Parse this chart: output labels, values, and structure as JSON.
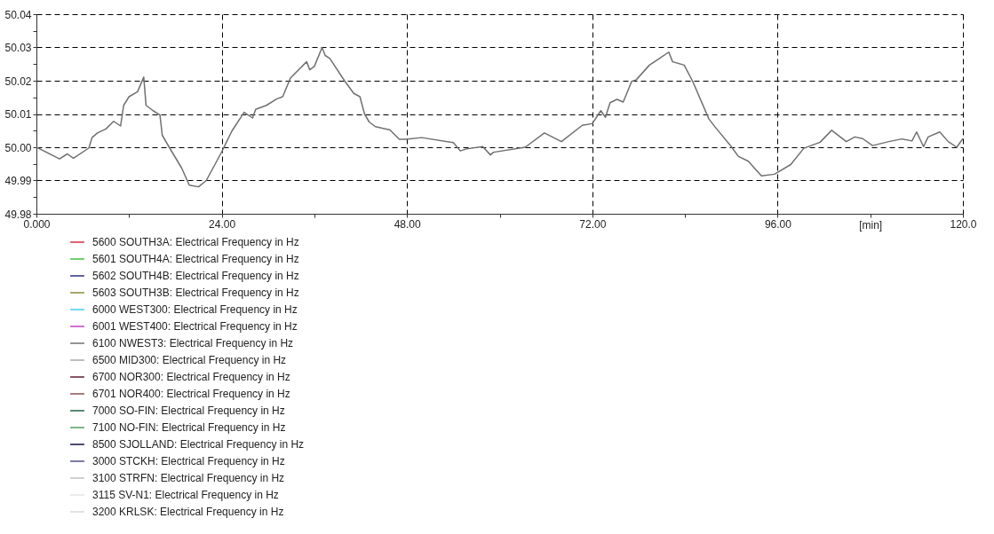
{
  "chart_data": {
    "type": "line",
    "xlabel": "[min]",
    "x": [
      0,
      3.0,
      4.0,
      4.8,
      6.8,
      7.2,
      7.9,
      9.0,
      10.0,
      10.9,
      11.3,
      12.0,
      13.1,
      13.9,
      14.2,
      15.1,
      16.0,
      16.3,
      17.2,
      18.8,
      19.8,
      21.0,
      22.0,
      24.0,
      25.3,
      26.9,
      28.0,
      28.4,
      29.8,
      31.1,
      31.9,
      32.9,
      35.0,
      35.4,
      36.0,
      37.0,
      37.4,
      38.0,
      39.9,
      41.1,
      41.9,
      42.5,
      43.1,
      43.9,
      45.8,
      47.0,
      47.9,
      49.9,
      54.0,
      54.9,
      55.7,
      57.8,
      58.8,
      59.2,
      63.3,
      65.8,
      68.0,
      70.7,
      72.0,
      73.1,
      73.7,
      74.3,
      75.2,
      76.0,
      77.1,
      77.7,
      79.4,
      80.7,
      81.9,
      82.4,
      83.9,
      85.0,
      87.1,
      87.9,
      90.0,
      90.9,
      92.2,
      93.9,
      95.6,
      97.7,
      99.4,
      101.5,
      103.0,
      104.9,
      106.0,
      107.0,
      108.3,
      110.4,
      112.1,
      113.4,
      114.0,
      114.9,
      115.5,
      117.0,
      118.1,
      119.2,
      120.0
    ],
    "series": [
      {
        "name": "5600 SOUTH3A: Electrical Frequency in Hz",
        "color": "#d03040",
        "values": [
          null,
          null,
          null,
          null,
          null,
          null,
          null,
          null,
          null,
          null,
          null,
          null,
          null,
          null,
          null,
          null,
          null,
          null,
          null,
          null,
          null,
          null,
          null,
          null,
          null,
          null,
          null,
          null,
          null,
          null,
          null,
          null,
          null,
          null,
          null,
          null,
          null,
          null,
          null,
          null,
          null,
          null,
          null,
          null,
          null,
          null,
          null,
          null,
          null,
          null,
          null,
          null,
          null,
          null,
          null,
          null,
          null,
          null,
          null,
          null,
          null,
          null,
          null,
          null,
          null,
          null,
          null,
          null,
          null,
          null,
          null,
          null,
          null,
          null,
          null,
          null,
          null,
          null,
          null,
          null,
          null,
          null,
          null,
          null,
          null,
          null,
          null,
          null,
          null,
          null,
          null,
          null,
          null,
          null,
          null,
          null,
          null
        ]
      },
      {
        "name": "5601 SOUTH4A: Electrical Frequency in Hz",
        "color": "#40c040",
        "values": [
          null,
          null,
          null,
          null,
          null,
          null,
          null,
          null,
          null,
          null,
          null,
          null,
          null,
          null,
          null,
          null,
          null,
          null,
          null,
          null,
          null,
          null,
          null,
          null,
          null,
          null,
          null,
          null,
          null,
          null,
          null,
          null,
          null,
          null,
          null,
          null,
          null,
          null,
          null,
          null,
          null,
          null,
          null,
          null,
          null,
          null,
          null,
          null,
          null,
          null,
          null,
          null,
          null,
          null,
          null,
          null,
          null,
          null,
          null,
          null,
          null,
          null,
          null,
          null,
          null,
          null,
          null,
          null,
          null,
          null,
          null,
          null,
          null,
          null,
          null,
          null,
          null,
          null,
          null,
          null,
          null,
          null,
          null,
          null,
          null,
          null,
          null,
          null,
          null,
          null,
          null,
          null,
          null,
          null,
          null,
          null,
          null
        ]
      },
      {
        "name": "5602 SOUTH4B: Electrical Frequency in Hz",
        "color": "#303080",
        "values": [
          null,
          null,
          null,
          null,
          null,
          null,
          null,
          null,
          null,
          null,
          null,
          null,
          null,
          null,
          null,
          null,
          null,
          null,
          null,
          null,
          null,
          null,
          null,
          null,
          null,
          null,
          null,
          null,
          null,
          null,
          null,
          null,
          null,
          null,
          null,
          null,
          null,
          null,
          null,
          null,
          null,
          null,
          null,
          null,
          null,
          null,
          null,
          null,
          null,
          null,
          null,
          null,
          null,
          null,
          null,
          null,
          null,
          null,
          null,
          null,
          null,
          null,
          null,
          null,
          null,
          null,
          null,
          null,
          null,
          null,
          null,
          null,
          null,
          null,
          null,
          null,
          null,
          null,
          null,
          null,
          null,
          null,
          null,
          null,
          null,
          null,
          null,
          null,
          null,
          null,
          null,
          null,
          null,
          null,
          null,
          null,
          null
        ]
      },
      {
        "name": "5603 SOUTH3B: Electrical Frequency in Hz",
        "color": "#8a8a40",
        "values": [
          null,
          null,
          null,
          null,
          null,
          null,
          null,
          null,
          null,
          null,
          null,
          null,
          null,
          null,
          null,
          null,
          null,
          null,
          null,
          null,
          null,
          null,
          null,
          null,
          null,
          null,
          null,
          null,
          null,
          null,
          null,
          null,
          null,
          null,
          null,
          null,
          null,
          null,
          null,
          null,
          null,
          null,
          null,
          null,
          null,
          null,
          null,
          null,
          null,
          null,
          null,
          null,
          null,
          null,
          null,
          null,
          null,
          null,
          null,
          null,
          null,
          null,
          null,
          null,
          null,
          null,
          null,
          null,
          null,
          null,
          null,
          null,
          null,
          null,
          null,
          null,
          null,
          null,
          null,
          null,
          null,
          null,
          null,
          null,
          null,
          null,
          null,
          null,
          null,
          null,
          null,
          null,
          null,
          null,
          null,
          null,
          null
        ]
      },
      {
        "name": "6000 WEST300: Electrical Frequency in Hz",
        "color": "#40d0e0",
        "values": [
          null,
          null,
          null,
          null,
          null,
          null,
          null,
          null,
          null,
          null,
          null,
          null,
          null,
          null,
          null,
          null,
          null,
          null,
          null,
          null,
          null,
          null,
          null,
          null,
          null,
          null,
          null,
          null,
          null,
          null,
          null,
          null,
          null,
          null,
          null,
          null,
          null,
          null,
          null,
          null,
          null,
          null,
          null,
          null,
          null,
          null,
          null,
          null,
          null,
          null,
          null,
          null,
          null,
          null,
          null,
          null,
          null,
          null,
          null,
          null,
          null,
          null,
          null,
          null,
          null,
          null,
          null,
          null,
          null,
          null,
          null,
          null,
          null,
          null,
          null,
          null,
          null,
          null,
          null,
          null,
          null,
          null,
          null,
          null,
          null,
          null,
          null,
          null,
          null,
          null,
          null,
          null,
          null,
          null,
          null,
          null,
          null
        ]
      },
      {
        "name": "6001 WEST400: Electrical Frequency in Hz",
        "color": "#c040c0",
        "values": [
          null,
          null,
          null,
          null,
          null,
          null,
          null,
          null,
          null,
          null,
          null,
          null,
          null,
          null,
          null,
          null,
          null,
          null,
          null,
          null,
          null,
          null,
          null,
          null,
          null,
          null,
          null,
          null,
          null,
          null,
          null,
          null,
          null,
          null,
          null,
          null,
          null,
          null,
          null,
          null,
          null,
          null,
          null,
          null,
          null,
          null,
          null,
          null,
          null,
          null,
          null,
          null,
          null,
          null,
          null,
          null,
          null,
          null,
          null,
          null,
          null,
          null,
          null,
          null,
          null,
          null,
          null,
          null,
          null,
          null,
          null,
          null,
          null,
          null,
          null,
          null,
          null,
          null,
          null,
          null,
          null,
          null,
          null,
          null,
          null,
          null,
          null,
          null,
          null,
          null,
          null,
          null,
          null,
          null,
          null,
          null,
          null
        ]
      },
      {
        "name": "6100 NWEST3: Electrical Frequency in Hz",
        "color": "#707070",
        "values": [
          50.0,
          49.9965,
          49.998,
          49.9967,
          49.9998,
          50.0029,
          50.0043,
          50.0055,
          50.0078,
          50.0064,
          50.0126,
          50.0152,
          50.0167,
          50.0211,
          50.0126,
          50.011,
          50.0097,
          50.0036,
          50.0,
          49.9938,
          49.9886,
          49.9881,
          49.99,
          49.9986,
          50.0048,
          50.0105,
          50.0088,
          50.0114,
          50.0126,
          50.0145,
          50.0152,
          50.0208,
          50.0257,
          50.0233,
          50.0243,
          50.03,
          50.0276,
          50.0267,
          50.02,
          50.0162,
          50.0152,
          50.01,
          50.0076,
          50.0062,
          50.0052,
          50.0024,
          50.0024,
          50.0029,
          50.0014,
          49.9989,
          49.9995,
          50.0002,
          49.9977,
          49.9985,
          50.0,
          50.0043,
          50.0017,
          50.0066,
          50.0071,
          50.011,
          50.009,
          50.0134,
          50.0144,
          50.0136,
          50.0198,
          50.0203,
          50.0247,
          50.0267,
          50.0286,
          50.0257,
          50.0247,
          50.0198,
          50.0085,
          50.0061,
          50.0002,
          49.9973,
          49.9958,
          49.9914,
          49.9919,
          49.9948,
          49.9997,
          50.0015,
          50.0051,
          50.0017,
          50.0031,
          50.0026,
          50.0005,
          50.0017,
          50.0025,
          50.0019,
          50.0046,
          50.0002,
          50.0031,
          50.0046,
          50.0017,
          50.0,
          50.0026
        ]
      },
      {
        "name": "6500 MID300: Electrical Frequency in Hz",
        "color": "#a8a8a8",
        "values": [
          null,
          null,
          null,
          null,
          null,
          null,
          null,
          null,
          null,
          null,
          null,
          null,
          null,
          null,
          null,
          null,
          null,
          null,
          null,
          null,
          null,
          null,
          null,
          null,
          null,
          null,
          null,
          null,
          null,
          null,
          null,
          null,
          null,
          null,
          null,
          null,
          null,
          null,
          null,
          null,
          null,
          null,
          null,
          null,
          null,
          null,
          null,
          null,
          null,
          null,
          null,
          null,
          null,
          null,
          null,
          null,
          null,
          null,
          null,
          null,
          null,
          null,
          null,
          null,
          null,
          null,
          null,
          null,
          null,
          null,
          null,
          null,
          null,
          null,
          null,
          null,
          null,
          null,
          null,
          null,
          null,
          null,
          null,
          null,
          null,
          null,
          null,
          null,
          null,
          null,
          null,
          null,
          null,
          null,
          null,
          null,
          null
        ]
      },
      {
        "name": "6700 NOR300: Electrical Frequency in Hz",
        "color": "#602030",
        "values": [
          null,
          null,
          null,
          null,
          null,
          null,
          null,
          null,
          null,
          null,
          null,
          null,
          null,
          null,
          null,
          null,
          null,
          null,
          null,
          null,
          null,
          null,
          null,
          null,
          null,
          null,
          null,
          null,
          null,
          null,
          null,
          null,
          null,
          null,
          null,
          null,
          null,
          null,
          null,
          null,
          null,
          null,
          null,
          null,
          null,
          null,
          null,
          null,
          null,
          null,
          null,
          null,
          null,
          null,
          null,
          null,
          null,
          null,
          null,
          null,
          null,
          null,
          null,
          null,
          null,
          null,
          null,
          null,
          null,
          null,
          null,
          null,
          null,
          null,
          null,
          null,
          null,
          null,
          null,
          null,
          null,
          null,
          null,
          null,
          null,
          null,
          null,
          null,
          null,
          null,
          null,
          null,
          null,
          null,
          null,
          null,
          null
        ]
      },
      {
        "name": "6701 NOR400: Electrical Frequency in Hz",
        "color": "#8a5050",
        "values": [
          null,
          null,
          null,
          null,
          null,
          null,
          null,
          null,
          null,
          null,
          null,
          null,
          null,
          null,
          null,
          null,
          null,
          null,
          null,
          null,
          null,
          null,
          null,
          null,
          null,
          null,
          null,
          null,
          null,
          null,
          null,
          null,
          null,
          null,
          null,
          null,
          null,
          null,
          null,
          null,
          null,
          null,
          null,
          null,
          null,
          null,
          null,
          null,
          null,
          null,
          null,
          null,
          null,
          null,
          null,
          null,
          null,
          null,
          null,
          null,
          null,
          null,
          null,
          null,
          null,
          null,
          null,
          null,
          null,
          null,
          null,
          null,
          null,
          null,
          null,
          null,
          null,
          null,
          null,
          null,
          null,
          null,
          null,
          null,
          null,
          null,
          null,
          null,
          null,
          null,
          null,
          null,
          null,
          null,
          null,
          null,
          null
        ]
      },
      {
        "name": "7000 SO-FIN: Electrical Frequency in Hz",
        "color": "#206040",
        "values": [
          null,
          null,
          null,
          null,
          null,
          null,
          null,
          null,
          null,
          null,
          null,
          null,
          null,
          null,
          null,
          null,
          null,
          null,
          null,
          null,
          null,
          null,
          null,
          null,
          null,
          null,
          null,
          null,
          null,
          null,
          null,
          null,
          null,
          null,
          null,
          null,
          null,
          null,
          null,
          null,
          null,
          null,
          null,
          null,
          null,
          null,
          null,
          null,
          null,
          null,
          null,
          null,
          null,
          null,
          null,
          null,
          null,
          null,
          null,
          null,
          null,
          null,
          null,
          null,
          null,
          null,
          null,
          null,
          null,
          null,
          null,
          null,
          null,
          null,
          null,
          null,
          null,
          null,
          null,
          null,
          null,
          null,
          null,
          null,
          null,
          null,
          null,
          null,
          null,
          null,
          null,
          null,
          null,
          null,
          null,
          null,
          null
        ]
      },
      {
        "name": "7100 NO-FIN: Electrical Frequency in Hz",
        "color": "#50a060",
        "values": [
          null,
          null,
          null,
          null,
          null,
          null,
          null,
          null,
          null,
          null,
          null,
          null,
          null,
          null,
          null,
          null,
          null,
          null,
          null,
          null,
          null,
          null,
          null,
          null,
          null,
          null,
          null,
          null,
          null,
          null,
          null,
          null,
          null,
          null,
          null,
          null,
          null,
          null,
          null,
          null,
          null,
          null,
          null,
          null,
          null,
          null,
          null,
          null,
          null,
          null,
          null,
          null,
          null,
          null,
          null,
          null,
          null,
          null,
          null,
          null,
          null,
          null,
          null,
          null,
          null,
          null,
          null,
          null,
          null,
          null,
          null,
          null,
          null,
          null,
          null,
          null,
          null,
          null,
          null,
          null,
          null,
          null,
          null,
          null,
          null,
          null,
          null,
          null,
          null,
          null,
          null,
          null,
          null,
          null,
          null,
          null,
          null
        ]
      },
      {
        "name": "8500 SJOLLAND: Electrical Frequency in Hz",
        "color": "#101040",
        "values": [
          null,
          null,
          null,
          null,
          null,
          null,
          null,
          null,
          null,
          null,
          null,
          null,
          null,
          null,
          null,
          null,
          null,
          null,
          null,
          null,
          null,
          null,
          null,
          null,
          null,
          null,
          null,
          null,
          null,
          null,
          null,
          null,
          null,
          null,
          null,
          null,
          null,
          null,
          null,
          null,
          null,
          null,
          null,
          null,
          null,
          null,
          null,
          null,
          null,
          null,
          null,
          null,
          null,
          null,
          null,
          null,
          null,
          null,
          null,
          null,
          null,
          null,
          null,
          null,
          null,
          null,
          null,
          null,
          null,
          null,
          null,
          null,
          null,
          null,
          null,
          null,
          null,
          null,
          null,
          null,
          null,
          null,
          null,
          null,
          null,
          null,
          null,
          null,
          null,
          null,
          null,
          null,
          null,
          null,
          null,
          null,
          null
        ]
      },
      {
        "name": "3000 STCKH: Electrical Frequency in Hz",
        "color": "#505080",
        "values": [
          null,
          null,
          null,
          null,
          null,
          null,
          null,
          null,
          null,
          null,
          null,
          null,
          null,
          null,
          null,
          null,
          null,
          null,
          null,
          null,
          null,
          null,
          null,
          null,
          null,
          null,
          null,
          null,
          null,
          null,
          null,
          null,
          null,
          null,
          null,
          null,
          null,
          null,
          null,
          null,
          null,
          null,
          null,
          null,
          null,
          null,
          null,
          null,
          null,
          null,
          null,
          null,
          null,
          null,
          null,
          null,
          null,
          null,
          null,
          null,
          null,
          null,
          null,
          null,
          null,
          null,
          null,
          null,
          null,
          null,
          null,
          null,
          null,
          null,
          null,
          null,
          null,
          null,
          null,
          null,
          null,
          null,
          null,
          null,
          null,
          null,
          null,
          null,
          null,
          null,
          null,
          null,
          null,
          null,
          null,
          null,
          null
        ]
      },
      {
        "name": "3100 STRFN: Electrical Frequency in Hz",
        "color": "#c0c0c0",
        "values": [
          null,
          null,
          null,
          null,
          null,
          null,
          null,
          null,
          null,
          null,
          null,
          null,
          null,
          null,
          null,
          null,
          null,
          null,
          null,
          null,
          null,
          null,
          null,
          null,
          null,
          null,
          null,
          null,
          null,
          null,
          null,
          null,
          null,
          null,
          null,
          null,
          null,
          null,
          null,
          null,
          null,
          null,
          null,
          null,
          null,
          null,
          null,
          null,
          null,
          null,
          null,
          null,
          null,
          null,
          null,
          null,
          null,
          null,
          null,
          null,
          null,
          null,
          null,
          null,
          null,
          null,
          null,
          null,
          null,
          null,
          null,
          null,
          null,
          null,
          null,
          null,
          null,
          null,
          null,
          null,
          null,
          null,
          null,
          null,
          null,
          null,
          null,
          null,
          null,
          null,
          null,
          null,
          null,
          null,
          null,
          null,
          null
        ]
      },
      {
        "name": "3115 SV-N1: Electrical Frequency in Hz",
        "color": "#e4e4e4",
        "values": [
          null,
          null,
          null,
          null,
          null,
          null,
          null,
          null,
          null,
          null,
          null,
          null,
          null,
          null,
          null,
          null,
          null,
          null,
          null,
          null,
          null,
          null,
          null,
          null,
          null,
          null,
          null,
          null,
          null,
          null,
          null,
          null,
          null,
          null,
          null,
          null,
          null,
          null,
          null,
          null,
          null,
          null,
          null,
          null,
          null,
          null,
          null,
          null,
          null,
          null,
          null,
          null,
          null,
          null,
          null,
          null,
          null,
          null,
          null,
          null,
          null,
          null,
          null,
          null,
          null,
          null,
          null,
          null,
          null,
          null,
          null,
          null,
          null,
          null,
          null,
          null,
          null,
          null,
          null,
          null,
          null,
          null,
          null,
          null,
          null,
          null,
          null,
          null,
          null,
          null,
          null,
          null,
          null,
          null,
          null,
          null,
          null
        ]
      },
      {
        "name": "3200 KRLSK: Electrical Frequency in Hz",
        "color": "#d8d8d8",
        "values": [
          null,
          null,
          null,
          null,
          null,
          null,
          null,
          null,
          null,
          null,
          null,
          null,
          null,
          null,
          null,
          null,
          null,
          null,
          null,
          null,
          null,
          null,
          null,
          null,
          null,
          null,
          null,
          null,
          null,
          null,
          null,
          null,
          null,
          null,
          null,
          null,
          null,
          null,
          null,
          null,
          null,
          null,
          null,
          null,
          null,
          null,
          null,
          null,
          null,
          null,
          null,
          null,
          null,
          null,
          null,
          null,
          null,
          null,
          null,
          null,
          null,
          null,
          null,
          null,
          null,
          null,
          null,
          null,
          null,
          null,
          null,
          null,
          null,
          null,
          null,
          null,
          null,
          null,
          null,
          null,
          null,
          null,
          null,
          null,
          null,
          null,
          null,
          null,
          null,
          null,
          null,
          null,
          null,
          null,
          null,
          null,
          null
        ]
      }
    ],
    "xlim": [
      0,
      120
    ],
    "xticks": [
      {
        "value": 0,
        "label": "0.000"
      },
      {
        "value": 12,
        "label": null
      },
      {
        "value": 24,
        "label": "24.00"
      },
      {
        "value": 36,
        "label": null
      },
      {
        "value": 48,
        "label": "48.00"
      },
      {
        "value": 60,
        "label": null
      },
      {
        "value": 72,
        "label": "72.00"
      },
      {
        "value": 84,
        "label": null
      },
      {
        "value": 96,
        "label": "96.00"
      },
      {
        "value": 108,
        "label": null
      },
      {
        "value": 120,
        "label": "120.0"
      }
    ],
    "ylim": [
      49.98,
      50.04
    ],
    "yticks": [
      49.98,
      {
        "value": 49.985,
        "label": null
      },
      49.99,
      {
        "value": 49.995,
        "label": null
      },
      {
        "value": 50,
        "label": "50.00"
      },
      {
        "value": 50.005,
        "label": null
      },
      50.01,
      {
        "value": 50.015,
        "label": null
      },
      50.02,
      {
        "value": 50.025,
        "label": null
      },
      50.03,
      {
        "value": 50.035,
        "label": null
      },
      50.04
    ],
    "grid": true,
    "legend": "bottom",
    "marker": "none",
    "line_style": "solid"
  }
}
